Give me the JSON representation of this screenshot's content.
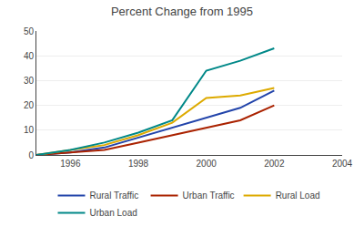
{
  "chart_data": {
    "type": "line",
    "title": "Percent Change from 1995",
    "x": [
      1995,
      1996,
      1997,
      1998,
      1999,
      2000,
      2001,
      2002
    ],
    "series": [
      {
        "name": "Rural Traffic",
        "color": "#2244aa",
        "values": [
          0,
          1,
          3,
          7,
          11,
          15,
          19,
          26
        ]
      },
      {
        "name": "Urban Traffic",
        "color": "#aa2200",
        "values": [
          0,
          1,
          2,
          5,
          8,
          11,
          14,
          20
        ]
      },
      {
        "name": "Rural Load",
        "color": "#ddaa00",
        "values": [
          0,
          2,
          4,
          8,
          13,
          23,
          24,
          27
        ]
      },
      {
        "name": "Urban Load",
        "color": "#008888",
        "values": [
          0,
          2,
          5,
          9,
          14,
          34,
          38,
          43
        ]
      }
    ],
    "xlim": [
      1995,
      2004
    ],
    "xticks": [
      1996,
      1998,
      2000,
      2002,
      2004
    ],
    "ylim": [
      0,
      50
    ],
    "yticks": [
      0,
      10,
      20,
      30,
      40,
      50
    ],
    "grid": true,
    "legend": "bottom"
  }
}
